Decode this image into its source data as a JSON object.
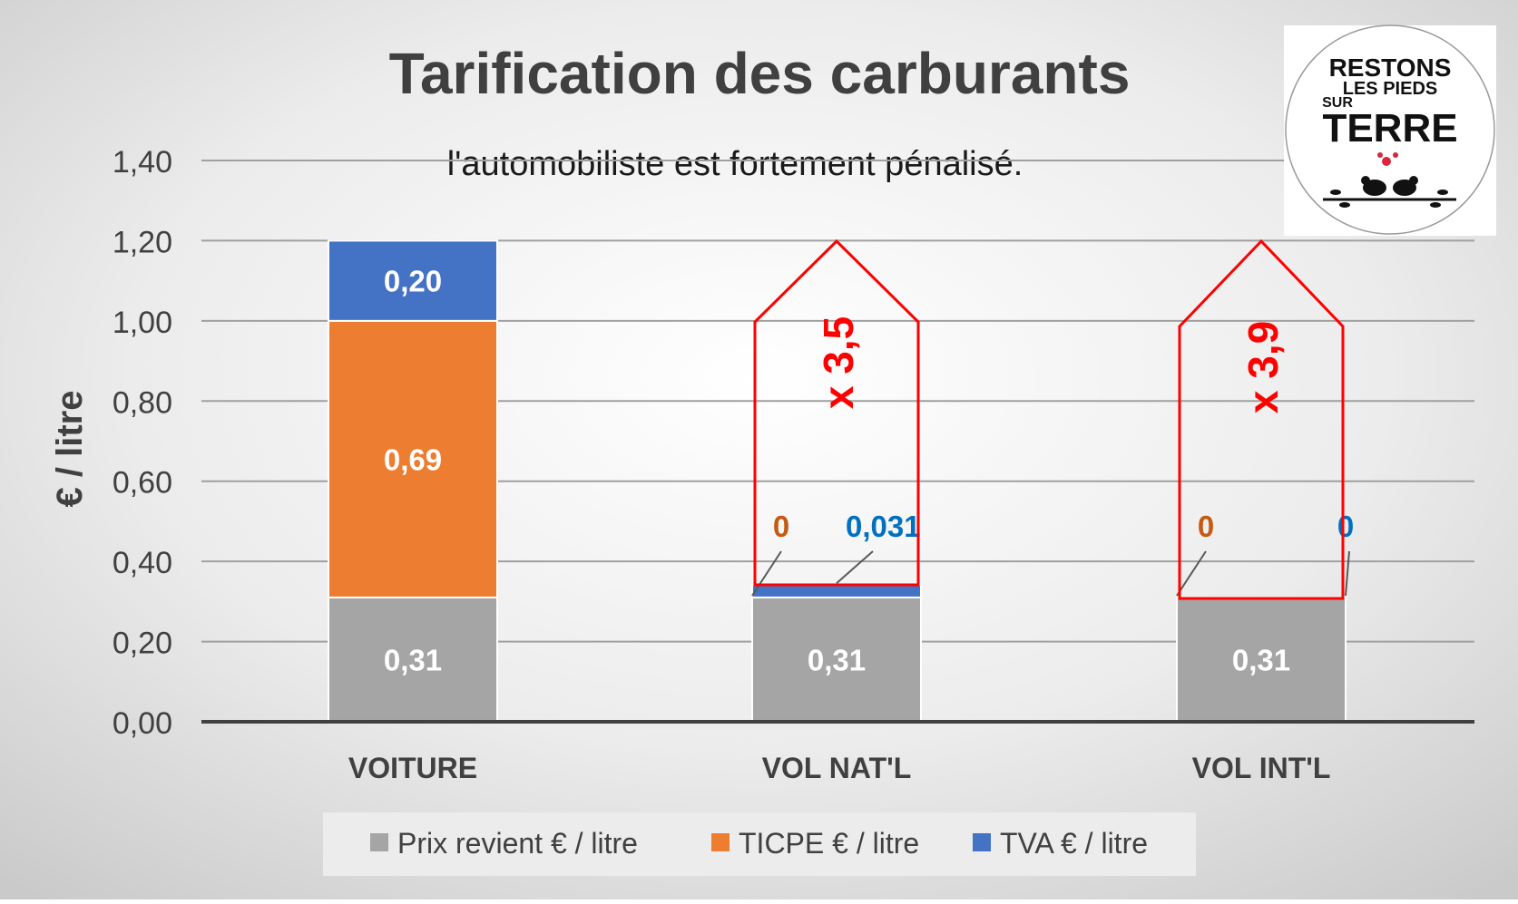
{
  "chart_data": {
    "type": "bar",
    "stacked": true,
    "title": "Tarification des carburants",
    "subtitle": "l'automobiliste est fortement pénalisé.",
    "ylabel": "€ / litre",
    "xlabel": "",
    "ylim": [
      0,
      1.4
    ],
    "yticks": [
      "0,00",
      "0,20",
      "0,40",
      "0,60",
      "0,80",
      "1,00",
      "1,20",
      "1,40"
    ],
    "grid": true,
    "legend_position": "bottom",
    "categories": [
      "VOITURE",
      "VOL NAT'L",
      "VOL INT'L"
    ],
    "series": [
      {
        "name": "Prix revient € / litre",
        "values": [
          0.31,
          0.31,
          0.31
        ],
        "labels": [
          "0,31",
          "0,31",
          "0,31"
        ],
        "color": "#a5a5a5"
      },
      {
        "name": "TICPE € / litre",
        "values": [
          0.69,
          0,
          0
        ],
        "labels": [
          "0,69",
          "0",
          "0"
        ],
        "color": "#ed7d31"
      },
      {
        "name": "TVA € / litre",
        "values": [
          0.2,
          0.031,
          0
        ],
        "labels": [
          "0,20",
          "0,031",
          "0"
        ],
        "color": "#4472c4"
      }
    ],
    "annotations": [
      {
        "category": "VOL NAT'L",
        "text": "x 3,5",
        "color": "#ff0000"
      },
      {
        "category": "VOL INT'L",
        "text": "x 3,9",
        "color": "#ff0000"
      }
    ]
  },
  "logo": {
    "line1": "RESTONS",
    "line2": "LES PIEDS",
    "line3": "SUR",
    "line4": "TERRE"
  },
  "colors": {
    "label_orange": "#c55a11",
    "label_blue": "#0070c0",
    "annotation_red": "#ff0000"
  }
}
